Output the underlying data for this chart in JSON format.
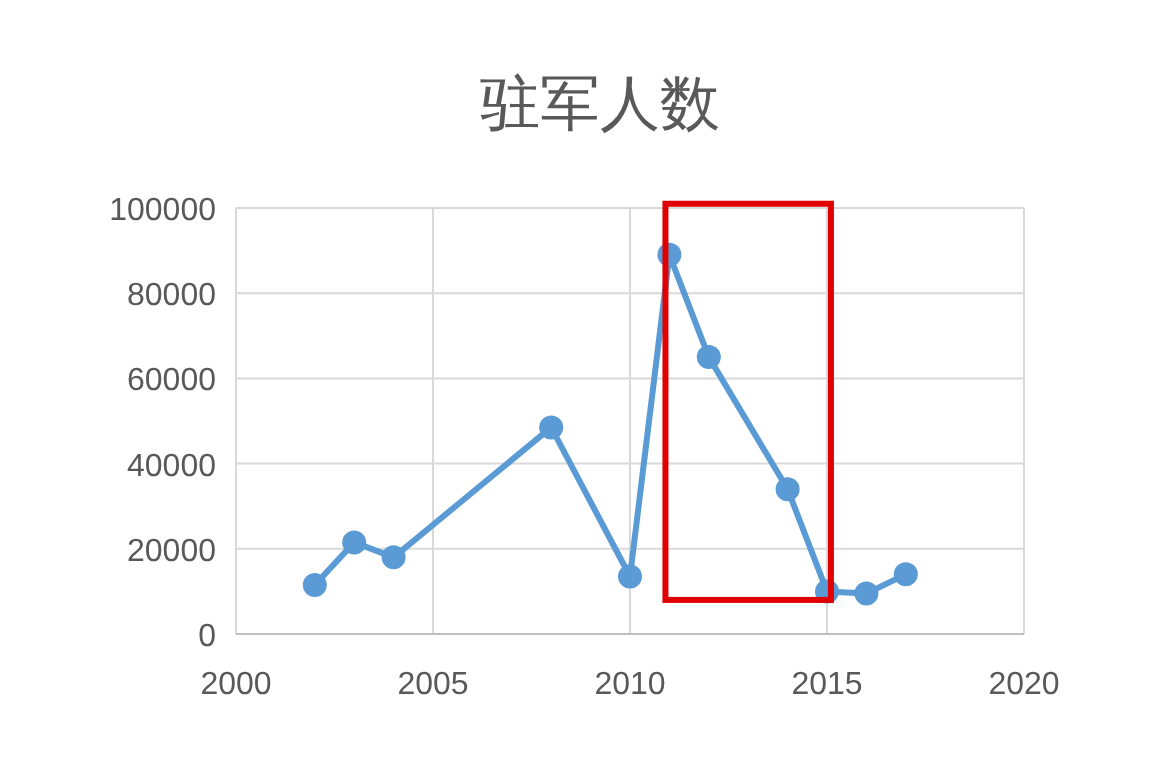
{
  "chart_data": {
    "type": "line",
    "title": "驻军人数",
    "x": [
      2002,
      2003,
      2004,
      2008,
      2010,
      2011,
      2012,
      2014,
      2015,
      2016,
      2017
    ],
    "series": [
      {
        "color": "#5b9bd5",
        "values": [
          11500,
          21500,
          18000,
          48500,
          13500,
          89000,
          65000,
          34000,
          10000,
          9500,
          14000
        ]
      }
    ],
    "xlim": [
      2000,
      2020
    ],
    "xticks": [
      2000,
      2005,
      2010,
      2015,
      2020
    ],
    "ylim": [
      0,
      100000
    ],
    "yticks": [
      0,
      20000,
      40000,
      60000,
      80000,
      100000
    ],
    "grid": true,
    "marker": "circle",
    "line_style": "solid"
  }
}
